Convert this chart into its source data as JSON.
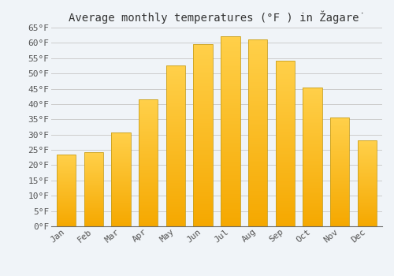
{
  "title": "Average monthly temperatures (°F ) in Žagarė",
  "months": [
    "Jan",
    "Feb",
    "Mar",
    "Apr",
    "May",
    "Jun",
    "Jul",
    "Aug",
    "Sep",
    "Oct",
    "Nov",
    "Dec"
  ],
  "values": [
    23.5,
    24.2,
    30.7,
    41.5,
    52.5,
    59.5,
    62.2,
    61.2,
    54.2,
    45.5,
    35.5,
    28.0
  ],
  "ylim": [
    0,
    65
  ],
  "yticks": [
    0,
    5,
    10,
    15,
    20,
    25,
    30,
    35,
    40,
    45,
    50,
    55,
    60,
    65
  ],
  "ytick_labels": [
    "0°F",
    "5°F",
    "10°F",
    "15°F",
    "20°F",
    "25°F",
    "30°F",
    "35°F",
    "40°F",
    "45°F",
    "50°F",
    "55°F",
    "60°F",
    "65°F"
  ],
  "bar_color_top": "#FFD04A",
  "bar_color_bottom": "#F5A800",
  "bar_edge_color": "#C8A020",
  "background_color": "#F0F4F8",
  "plot_bg_color": "#F0F4F8",
  "grid_color": "#CCCCCC",
  "title_fontsize": 10,
  "tick_fontsize": 8,
  "bar_width": 0.7
}
